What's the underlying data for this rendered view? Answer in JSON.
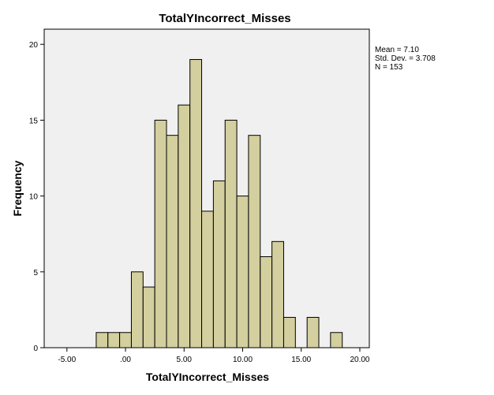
{
  "chart_data": {
    "type": "bar",
    "title": "TotalYIncorrect_Misses",
    "xlabel": "TotalYIncorrect_Misses",
    "ylabel": "Frequency",
    "xlim": [
      -6.94,
      20.81
    ],
    "ylim": [
      0,
      21
    ],
    "x_ticks": [
      -5,
      0,
      5,
      10,
      15,
      20
    ],
    "x_tick_labels": [
      "-5.00",
      ".00",
      "5.00",
      "10.00",
      "15.00",
      "20.00"
    ],
    "y_ticks": [
      0,
      5,
      10,
      15,
      20
    ],
    "y_tick_labels": [
      "0",
      "5",
      "10",
      "15",
      "20"
    ],
    "bin_width": 1,
    "bin_starts": [
      -2.5,
      -1.5,
      -0.5,
      0.5,
      1.5,
      2.5,
      3.5,
      4.5,
      5.5,
      6.5,
      7.5,
      8.5,
      9.5,
      10.5,
      11.5,
      12.5,
      13.5,
      14.5,
      15.5,
      16.5,
      17.5
    ],
    "values": [
      1,
      1,
      1,
      5,
      4,
      15,
      14,
      16,
      19,
      9,
      11,
      15,
      10,
      14,
      6,
      7,
      2,
      0,
      2,
      0,
      1
    ],
    "bar_color": "#d3cf9e",
    "background_color": "#f0f0f0",
    "grid": false,
    "legend": "none",
    "stats": [
      "Mean = 7.10",
      "Std. Dev. = 3.708",
      "N = 153"
    ]
  }
}
